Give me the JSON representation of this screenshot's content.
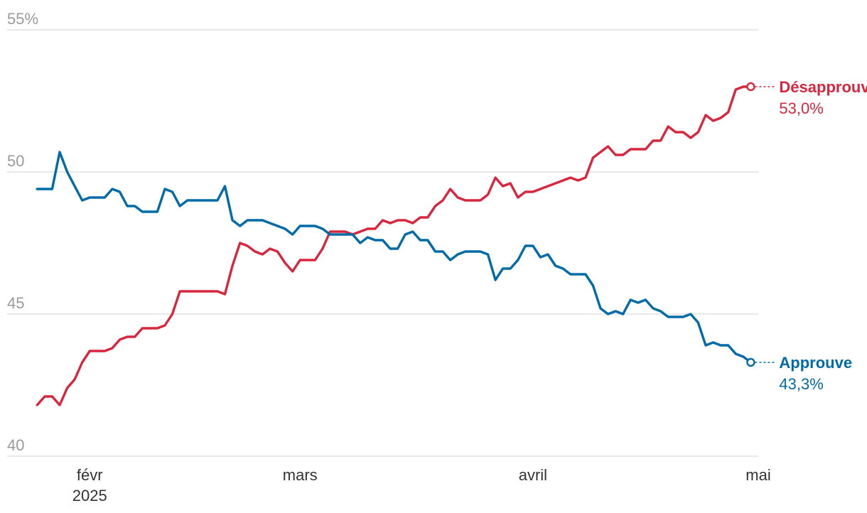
{
  "chart_data": {
    "type": "line",
    "title": "",
    "xlabel": "",
    "ylabel": "",
    "ylim": [
      40,
      55
    ],
    "y_ticks": [
      {
        "value": 55,
        "label": "55%"
      },
      {
        "value": 50,
        "label": "50"
      },
      {
        "value": 45,
        "label": "45"
      },
      {
        "value": 40,
        "label": "40"
      }
    ],
    "x_range": [
      "2025-01-21",
      "2025-05-01"
    ],
    "x_ticks": [
      {
        "date": "2025-02-01",
        "label": "févr",
        "sublabel": "2025"
      },
      {
        "date": "2025-03-01",
        "label": "mars",
        "sublabel": ""
      },
      {
        "date": "2025-04-01",
        "label": "avril",
        "sublabel": ""
      },
      {
        "date": "2025-05-01",
        "label": "mai",
        "sublabel": ""
      }
    ],
    "grid": true,
    "series": [
      {
        "name": "Désapprouve",
        "value_label": "53,0%",
        "color": "#d7263d",
        "points": [
          [
            "2025-01-25",
            41.8
          ],
          [
            "2025-01-26",
            42.1
          ],
          [
            "2025-01-27",
            42.1
          ],
          [
            "2025-01-28",
            41.8
          ],
          [
            "2025-01-29",
            42.4
          ],
          [
            "2025-01-30",
            42.7
          ],
          [
            "2025-01-31",
            43.3
          ],
          [
            "2025-02-01",
            43.7
          ],
          [
            "2025-02-02",
            43.7
          ],
          [
            "2025-02-03",
            43.7
          ],
          [
            "2025-02-04",
            43.8
          ],
          [
            "2025-02-05",
            44.1
          ],
          [
            "2025-02-06",
            44.2
          ],
          [
            "2025-02-07",
            44.2
          ],
          [
            "2025-02-08",
            44.5
          ],
          [
            "2025-02-09",
            44.5
          ],
          [
            "2025-02-10",
            44.5
          ],
          [
            "2025-02-11",
            44.6
          ],
          [
            "2025-02-12",
            45.0
          ],
          [
            "2025-02-13",
            45.8
          ],
          [
            "2025-02-14",
            45.8
          ],
          [
            "2025-02-15",
            45.8
          ],
          [
            "2025-02-16",
            45.8
          ],
          [
            "2025-02-17",
            45.8
          ],
          [
            "2025-02-18",
            45.8
          ],
          [
            "2025-02-19",
            45.7
          ],
          [
            "2025-02-20",
            46.7
          ],
          [
            "2025-02-21",
            47.5
          ],
          [
            "2025-02-22",
            47.4
          ],
          [
            "2025-02-23",
            47.2
          ],
          [
            "2025-02-24",
            47.1
          ],
          [
            "2025-02-25",
            47.3
          ],
          [
            "2025-02-26",
            47.2
          ],
          [
            "2025-02-27",
            46.8
          ],
          [
            "2025-02-28",
            46.5
          ],
          [
            "2025-03-01",
            46.9
          ],
          [
            "2025-03-02",
            46.9
          ],
          [
            "2025-03-03",
            46.9
          ],
          [
            "2025-03-04",
            47.3
          ],
          [
            "2025-03-05",
            47.9
          ],
          [
            "2025-03-06",
            47.9
          ],
          [
            "2025-03-07",
            47.9
          ],
          [
            "2025-03-08",
            47.8
          ],
          [
            "2025-03-09",
            47.9
          ],
          [
            "2025-03-10",
            48.0
          ],
          [
            "2025-03-11",
            48.0
          ],
          [
            "2025-03-12",
            48.3
          ],
          [
            "2025-03-13",
            48.2
          ],
          [
            "2025-03-14",
            48.3
          ],
          [
            "2025-03-15",
            48.3
          ],
          [
            "2025-03-16",
            48.2
          ],
          [
            "2025-03-17",
            48.4
          ],
          [
            "2025-03-18",
            48.4
          ],
          [
            "2025-03-19",
            48.8
          ],
          [
            "2025-03-20",
            49.0
          ],
          [
            "2025-03-21",
            49.4
          ],
          [
            "2025-03-22",
            49.1
          ],
          [
            "2025-03-23",
            49.0
          ],
          [
            "2025-03-24",
            49.0
          ],
          [
            "2025-03-25",
            49.0
          ],
          [
            "2025-03-26",
            49.2
          ],
          [
            "2025-03-27",
            49.8
          ],
          [
            "2025-03-28",
            49.5
          ],
          [
            "2025-03-29",
            49.6
          ],
          [
            "2025-03-30",
            49.1
          ],
          [
            "2025-03-31",
            49.3
          ],
          [
            "2025-04-01",
            49.3
          ],
          [
            "2025-04-02",
            49.4
          ],
          [
            "2025-04-03",
            49.5
          ],
          [
            "2025-04-04",
            49.6
          ],
          [
            "2025-04-05",
            49.7
          ],
          [
            "2025-04-06",
            49.8
          ],
          [
            "2025-04-07",
            49.7
          ],
          [
            "2025-04-08",
            49.8
          ],
          [
            "2025-04-09",
            50.5
          ],
          [
            "2025-04-10",
            50.7
          ],
          [
            "2025-04-11",
            50.9
          ],
          [
            "2025-04-12",
            50.6
          ],
          [
            "2025-04-13",
            50.6
          ],
          [
            "2025-04-14",
            50.8
          ],
          [
            "2025-04-15",
            50.8
          ],
          [
            "2025-04-16",
            50.8
          ],
          [
            "2025-04-17",
            51.1
          ],
          [
            "2025-04-18",
            51.1
          ],
          [
            "2025-04-19",
            51.6
          ],
          [
            "2025-04-20",
            51.4
          ],
          [
            "2025-04-21",
            51.4
          ],
          [
            "2025-04-22",
            51.2
          ],
          [
            "2025-04-23",
            51.4
          ],
          [
            "2025-04-24",
            52.0
          ],
          [
            "2025-04-25",
            51.8
          ],
          [
            "2025-04-26",
            51.9
          ],
          [
            "2025-04-27",
            52.1
          ],
          [
            "2025-04-28",
            52.9
          ],
          [
            "2025-04-29",
            53.0
          ],
          [
            "2025-04-30",
            53.0
          ]
        ]
      },
      {
        "name": "Approuve",
        "value_label": "43,3%",
        "color": "#006ba6",
        "points": [
          [
            "2025-01-25",
            49.4
          ],
          [
            "2025-01-26",
            49.4
          ],
          [
            "2025-01-27",
            49.4
          ],
          [
            "2025-01-28",
            50.7
          ],
          [
            "2025-01-29",
            50.0
          ],
          [
            "2025-01-30",
            49.5
          ],
          [
            "2025-01-31",
            49.0
          ],
          [
            "2025-02-01",
            49.1
          ],
          [
            "2025-02-02",
            49.1
          ],
          [
            "2025-02-03",
            49.1
          ],
          [
            "2025-02-04",
            49.4
          ],
          [
            "2025-02-05",
            49.3
          ],
          [
            "2025-02-06",
            48.8
          ],
          [
            "2025-02-07",
            48.8
          ],
          [
            "2025-02-08",
            48.6
          ],
          [
            "2025-02-09",
            48.6
          ],
          [
            "2025-02-10",
            48.6
          ],
          [
            "2025-02-11",
            49.4
          ],
          [
            "2025-02-12",
            49.3
          ],
          [
            "2025-02-13",
            48.8
          ],
          [
            "2025-02-14",
            49.0
          ],
          [
            "2025-02-15",
            49.0
          ],
          [
            "2025-02-16",
            49.0
          ],
          [
            "2025-02-17",
            49.0
          ],
          [
            "2025-02-18",
            49.0
          ],
          [
            "2025-02-19",
            49.5
          ],
          [
            "2025-02-20",
            48.3
          ],
          [
            "2025-02-21",
            48.1
          ],
          [
            "2025-02-22",
            48.3
          ],
          [
            "2025-02-23",
            48.3
          ],
          [
            "2025-02-24",
            48.3
          ],
          [
            "2025-02-25",
            48.2
          ],
          [
            "2025-02-26",
            48.1
          ],
          [
            "2025-02-27",
            48.0
          ],
          [
            "2025-02-28",
            47.8
          ],
          [
            "2025-03-01",
            48.1
          ],
          [
            "2025-03-02",
            48.1
          ],
          [
            "2025-03-03",
            48.1
          ],
          [
            "2025-03-04",
            48.0
          ],
          [
            "2025-03-05",
            47.8
          ],
          [
            "2025-03-06",
            47.8
          ],
          [
            "2025-03-07",
            47.8
          ],
          [
            "2025-03-08",
            47.8
          ],
          [
            "2025-03-09",
            47.5
          ],
          [
            "2025-03-10",
            47.7
          ],
          [
            "2025-03-11",
            47.6
          ],
          [
            "2025-03-12",
            47.6
          ],
          [
            "2025-03-13",
            47.3
          ],
          [
            "2025-03-14",
            47.3
          ],
          [
            "2025-03-15",
            47.8
          ],
          [
            "2025-03-16",
            47.9
          ],
          [
            "2025-03-17",
            47.6
          ],
          [
            "2025-03-18",
            47.6
          ],
          [
            "2025-03-19",
            47.2
          ],
          [
            "2025-03-20",
            47.2
          ],
          [
            "2025-03-21",
            46.9
          ],
          [
            "2025-03-22",
            47.1
          ],
          [
            "2025-03-23",
            47.2
          ],
          [
            "2025-03-24",
            47.2
          ],
          [
            "2025-03-25",
            47.2
          ],
          [
            "2025-03-26",
            47.1
          ],
          [
            "2025-03-27",
            46.2
          ],
          [
            "2025-03-28",
            46.6
          ],
          [
            "2025-03-29",
            46.6
          ],
          [
            "2025-03-30",
            46.9
          ],
          [
            "2025-03-31",
            47.4
          ],
          [
            "2025-04-01",
            47.4
          ],
          [
            "2025-04-02",
            47.0
          ],
          [
            "2025-04-03",
            47.1
          ],
          [
            "2025-04-04",
            46.7
          ],
          [
            "2025-04-05",
            46.6
          ],
          [
            "2025-04-06",
            46.4
          ],
          [
            "2025-04-07",
            46.4
          ],
          [
            "2025-04-08",
            46.4
          ],
          [
            "2025-04-09",
            46.0
          ],
          [
            "2025-04-10",
            45.2
          ],
          [
            "2025-04-11",
            45.0
          ],
          [
            "2025-04-12",
            45.1
          ],
          [
            "2025-04-13",
            45.0
          ],
          [
            "2025-04-14",
            45.5
          ],
          [
            "2025-04-15",
            45.4
          ],
          [
            "2025-04-16",
            45.5
          ],
          [
            "2025-04-17",
            45.2
          ],
          [
            "2025-04-18",
            45.1
          ],
          [
            "2025-04-19",
            44.9
          ],
          [
            "2025-04-20",
            44.9
          ],
          [
            "2025-04-21",
            44.9
          ],
          [
            "2025-04-22",
            45.0
          ],
          [
            "2025-04-23",
            44.7
          ],
          [
            "2025-04-24",
            43.9
          ],
          [
            "2025-04-25",
            44.0
          ],
          [
            "2025-04-26",
            43.9
          ],
          [
            "2025-04-27",
            43.9
          ],
          [
            "2025-04-28",
            43.6
          ],
          [
            "2025-04-29",
            43.5
          ],
          [
            "2025-04-30",
            43.3
          ]
        ]
      }
    ]
  }
}
